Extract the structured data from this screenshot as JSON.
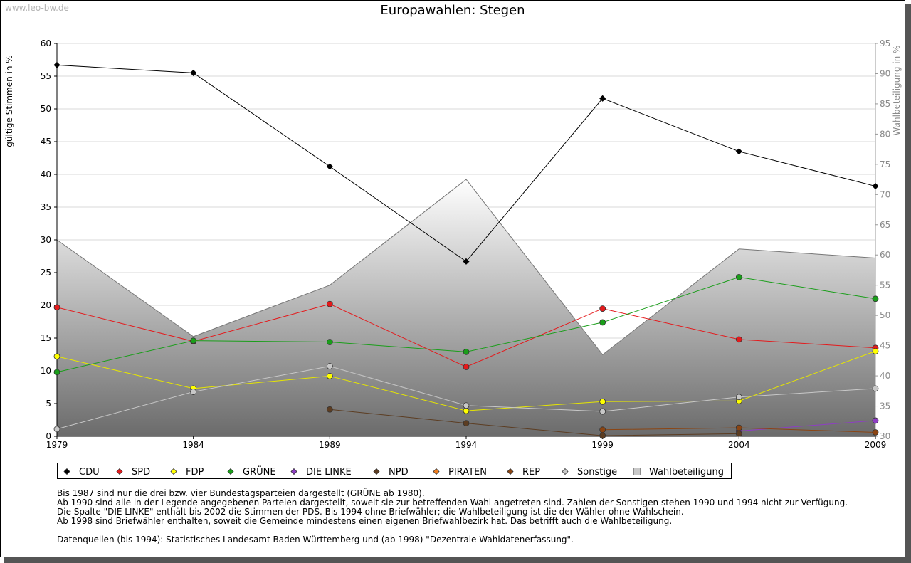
{
  "watermark": "www.leo-bw.de",
  "chart_data": {
    "type": "line",
    "title": "Europawahlen: Stegen",
    "ylabel": "gültige Stimmen in %",
    "y2label": "Wahlbeteiligung in %",
    "x": [
      1979,
      1984,
      1989,
      1994,
      1999,
      2004,
      2009
    ],
    "ylim": [
      0,
      60
    ],
    "y_ticks": [
      0,
      5,
      10,
      15,
      20,
      25,
      30,
      35,
      40,
      45,
      50,
      55,
      60
    ],
    "y2lim": [
      30,
      95
    ],
    "y2_ticks": [
      30,
      35,
      40,
      45,
      50,
      55,
      60,
      65,
      70,
      75,
      80,
      85,
      90,
      95
    ],
    "grid": true,
    "series": [
      {
        "name": "CDU",
        "color": "#000000",
        "values": [
          56.7,
          55.5,
          41.2,
          26.7,
          51.6,
          43.5,
          38.2
        ]
      },
      {
        "name": "SPD",
        "color": "#e41a1c",
        "values": [
          19.7,
          14.5,
          20.2,
          10.6,
          19.5,
          14.8,
          13.5
        ]
      },
      {
        "name": "FDP",
        "color": "#ffff00",
        "values": [
          12.2,
          7.3,
          9.2,
          3.9,
          5.3,
          5.4,
          13.0
        ]
      },
      {
        "name": "GRÜNE",
        "color": "#1a9e1a",
        "values": [
          9.8,
          14.6,
          14.4,
          12.9,
          17.4,
          24.3,
          21.0
        ]
      },
      {
        "name": "DIE LINKE",
        "color": "#8e3ec4",
        "values": [
          null,
          null,
          null,
          null,
          null,
          0.8,
          2.4
        ]
      },
      {
        "name": "NPD",
        "color": "#5c3d22",
        "values": [
          null,
          null,
          4.1,
          2.0,
          0.1,
          0.4,
          null
        ]
      },
      {
        "name": "PIRATEN",
        "color": "#f07d1e",
        "values": [
          null,
          null,
          null,
          null,
          null,
          null,
          null
        ]
      },
      {
        "name": "REP",
        "color": "#8b4513",
        "values": [
          null,
          null,
          null,
          null,
          1.0,
          1.3,
          0.6
        ]
      },
      {
        "name": "Sonstige",
        "color": "#c8c8c8",
        "values": [
          1.1,
          6.8,
          10.7,
          4.7,
          3.8,
          6.0,
          7.3
        ]
      }
    ],
    "area_series": {
      "name": "Wahlbeteiligung",
      "axis": "right",
      "values": [
        62.5,
        46.5,
        55.0,
        72.5,
        43.5,
        61.0,
        59.5
      ]
    }
  },
  "legend": {
    "placement": "bottom",
    "items": [
      {
        "label": "CDU",
        "color": "#000000",
        "shape": "diamond"
      },
      {
        "label": "SPD",
        "color": "#e41a1c",
        "shape": "diamond"
      },
      {
        "label": "FDP",
        "color": "#ffff00",
        "shape": "diamond"
      },
      {
        "label": "GRÜNE",
        "color": "#1a9e1a",
        "shape": "diamond"
      },
      {
        "label": "DIE LINKE",
        "color": "#8e3ec4",
        "shape": "diamond"
      },
      {
        "label": "NPD",
        "color": "#5c3d22",
        "shape": "diamond"
      },
      {
        "label": "PIRATEN",
        "color": "#f07d1e",
        "shape": "diamond"
      },
      {
        "label": "REP",
        "color": "#8b4513",
        "shape": "diamond"
      },
      {
        "label": "Sonstige",
        "color": "#c8c8c8",
        "shape": "diamond"
      },
      {
        "label": "Wahlbeteiligung",
        "color": "#aaaaaa",
        "shape": "square"
      }
    ]
  },
  "notes": [
    "Bis 1987 sind nur die drei bzw. vier Bundestagsparteien dargestellt (GRÜNE ab 1980).",
    "Ab 1990 sind alle in der Legende angegebenen Parteien dargestellt, soweit sie zur betreffenden Wahl angetreten sind. Zahlen der Sonstigen stehen 1990 und 1994 nicht zur Verfügung.",
    "Die Spalte \"DIE LINKE\" enthält bis 2002 die Stimmen der PDS. Bis 1994 ohne Briefwähler; die Wahlbeteiligung ist die der Wähler ohne Wahlschein.",
    "Ab 1998 sind Briefwähler enthalten, soweit die Gemeinde mindestens einen eigenen Briefwahlbezirk hat. Das betrifft auch die Wahlbeteiligung."
  ],
  "source": "Datenquellen (bis 1994): Statistisches Landesamt Baden-Württemberg und (ab 1998) \"Dezentrale Wahldatenerfassung\"."
}
